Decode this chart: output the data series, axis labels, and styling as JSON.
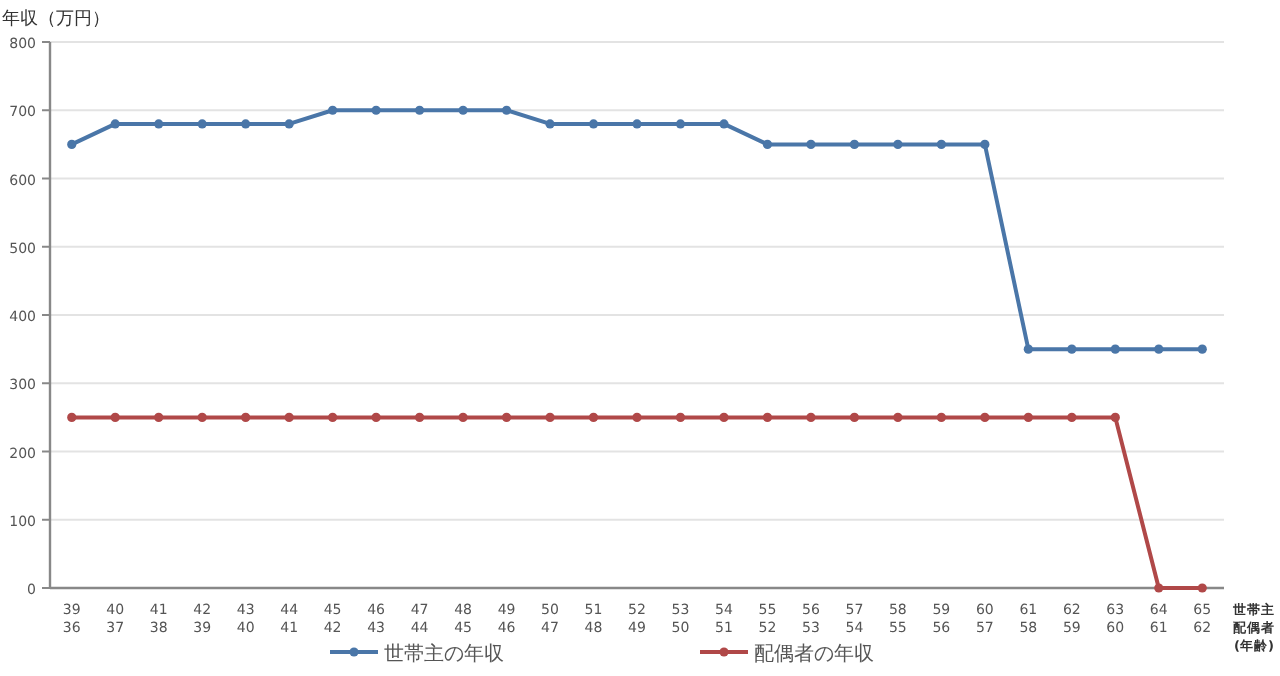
{
  "chart_data": {
    "type": "line",
    "ylabel": "年収（万円）",
    "xlabel": "世帯主配偶者(年齢)",
    "categories": [
      "39\n36",
      "40\n37",
      "41\n38",
      "42\n39",
      "43\n40",
      "44\n41",
      "45\n42",
      "46\n43",
      "47\n44",
      "48\n45",
      "49\n46",
      "50\n47",
      "51\n48",
      "52\n49",
      "53\n50",
      "54\n51",
      "55\n52",
      "56\n53",
      "57\n54",
      "58\n55",
      "59\n56",
      "60\n57",
      "61\n58",
      "62\n59",
      "63\n60",
      "64\n61",
      "65\n62"
    ],
    "series": [
      {
        "name": "世帯主の年収",
        "color": "#4a76a8",
        "values": [
          650,
          680,
          680,
          680,
          680,
          680,
          700,
          700,
          700,
          700,
          700,
          680,
          680,
          680,
          680,
          680,
          650,
          650,
          650,
          650,
          650,
          650,
          350,
          350,
          350,
          350,
          350
        ]
      },
      {
        "name": "配偶者の年収",
        "color": "#b04848",
        "values": [
          250,
          250,
          250,
          250,
          250,
          250,
          250,
          250,
          250,
          250,
          250,
          250,
          250,
          250,
          250,
          250,
          250,
          250,
          250,
          250,
          250,
          250,
          250,
          250,
          250,
          0,
          0
        ]
      }
    ],
    "ylim": [
      0,
      800
    ],
    "yticks": [
      0,
      100,
      200,
      300,
      400,
      500,
      600,
      700,
      800
    ],
    "grid": "y",
    "legend": "bottom",
    "marker": "circle"
  }
}
